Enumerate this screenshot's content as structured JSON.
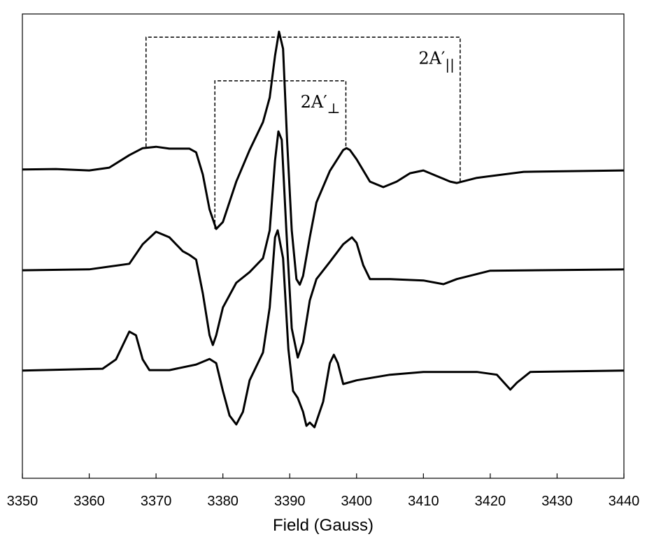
{
  "chart_data": {
    "type": "line",
    "xlabel": "Field (Gauss)",
    "xlim": [
      3350,
      3440
    ],
    "xticks": [
      3350,
      3360,
      3370,
      3380,
      3390,
      3400,
      3410,
      3420,
      3430,
      3440
    ],
    "ylim": [
      0,
      100
    ],
    "series": [
      {
        "color": "#000000",
        "x": [
          3350,
          3355,
          3360,
          3363,
          3366,
          3368,
          3370,
          3372,
          3375,
          3376,
          3377,
          3378,
          3379,
          3380,
          3382,
          3384,
          3386,
          3387,
          3387.8,
          3388.4,
          3389,
          3389.6,
          3390.3,
          3391,
          3391.5,
          3392,
          3393,
          3394,
          3396,
          3398,
          3398.5,
          3399,
          3400,
          3402,
          3404,
          3406,
          3408,
          3410,
          3412,
          3414,
          3415,
          3418,
          3425,
          3440
        ],
        "values": [
          66.5,
          66.6,
          66.3,
          66.9,
          69.6,
          71.1,
          71.4,
          71.0,
          71.0,
          70.2,
          65.4,
          57.9,
          53.7,
          55.2,
          63.9,
          70.7,
          76.7,
          82.0,
          91.0,
          96.2,
          92.5,
          72.9,
          53.4,
          42.9,
          41.7,
          43.6,
          51.9,
          59.4,
          66.2,
          70.7,
          71.1,
          70.7,
          68.7,
          63.9,
          62.7,
          63.9,
          65.7,
          66.3,
          65.1,
          63.9,
          63.6,
          64.7,
          66.0,
          66.3
        ]
      },
      {
        "color": "#000000",
        "x": [
          3350,
          3360,
          3366,
          3368,
          3370,
          3372,
          3374,
          3375,
          3376,
          3377,
          3378,
          3378.5,
          3379,
          3380,
          3382,
          3384,
          3386,
          3387,
          3387.8,
          3388.3,
          3388.8,
          3389.5,
          3390.3,
          3391.2,
          3392,
          3393,
          3394,
          3396,
          3398,
          3399.3,
          3400,
          3401,
          3402,
          3405,
          3410,
          3413,
          3415,
          3420,
          3440
        ],
        "values": [
          44.8,
          45.0,
          46.2,
          50.4,
          53.1,
          51.9,
          48.9,
          48.1,
          47.1,
          39.8,
          30.8,
          28.7,
          30.8,
          36.8,
          42.1,
          44.4,
          47.4,
          53.4,
          68.4,
          74.7,
          72.9,
          53.4,
          32.3,
          26.0,
          29.3,
          38.3,
          42.9,
          46.6,
          50.4,
          51.9,
          50.7,
          45.9,
          42.9,
          42.9,
          42.6,
          41.8,
          42.9,
          44.7,
          45.0
        ]
      },
      {
        "color": "#000000",
        "x": [
          3350,
          3362,
          3364,
          3366,
          3367,
          3368,
          3369,
          3372,
          3376,
          3378,
          3379,
          3380,
          3381,
          3382,
          3383,
          3384,
          3386,
          3387,
          3387.8,
          3388.2,
          3389,
          3389.8,
          3390.5,
          3391.2,
          3392,
          3392.5,
          3393,
          3393.7,
          3395,
          3396,
          3396.6,
          3397.2,
          3398,
          3400,
          3405,
          3410,
          3418,
          3421,
          3423,
          3424,
          3426,
          3440
        ],
        "values": [
          23.2,
          23.6,
          25.6,
          31.6,
          30.8,
          25.6,
          23.3,
          23.3,
          24.5,
          25.7,
          24.8,
          18.8,
          13.5,
          11.6,
          14.3,
          21.1,
          27.1,
          36.8,
          51.9,
          53.4,
          47.4,
          27.8,
          18.8,
          17.3,
          14.3,
          11.3,
          12.0,
          11.0,
          16.5,
          24.8,
          26.6,
          24.8,
          20.3,
          21.1,
          22.3,
          22.9,
          22.9,
          22.3,
          19.1,
          20.6,
          22.9,
          23.2
        ]
      }
    ],
    "annotations": [
      {
        "label": "2A′",
        "subscript": "||",
        "x": [
          3368.5,
          3415.5
        ],
        "y": [
          71.4,
          63.6
        ],
        "top": 95.0
      },
      {
        "label": "2A′",
        "subscript": "⊥",
        "x": [
          3378.8,
          3398.4
        ],
        "y": [
          53.7,
          71.1
        ],
        "top": 85.6
      }
    ]
  }
}
